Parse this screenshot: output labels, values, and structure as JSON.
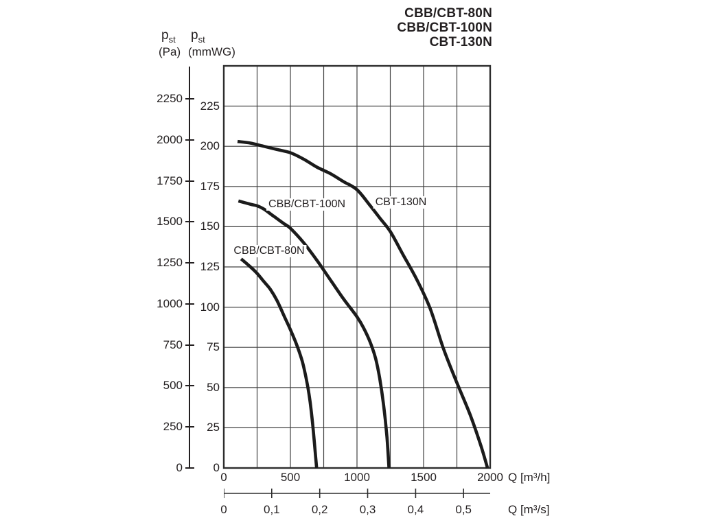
{
  "colors": {
    "ink": "#231f20",
    "grid": "#404040",
    "curve": "#1b1b1b",
    "background": "#ffffff"
  },
  "chart_data": {
    "type": "line",
    "title": "",
    "legend": [
      "CBB/CBT-80N",
      "CBB/CBT-100N",
      "CBT-130N"
    ],
    "grid": true,
    "x_axis": {
      "unit_label": "Q [m³/h]",
      "min": 0,
      "max": 2000,
      "gridline_step": 250,
      "tick_values": [
        0,
        500,
        1000,
        1500,
        2000
      ],
      "tick_labels": [
        "0",
        "500",
        "1000",
        "1500",
        "2000"
      ]
    },
    "x_axis_secondary": {
      "unit_label": "Q [m³/s]",
      "m3h_per_m3s": 3600,
      "tick_values": [
        0,
        0.1,
        0.2,
        0.3,
        0.4,
        0.5
      ],
      "tick_labels": [
        "0",
        "0,1",
        "0,2",
        "0,3",
        "0,4",
        "0,5"
      ]
    },
    "y_axis_mmwg": {
      "symbol": "p",
      "symbol_sub": "st",
      "unit_label": "(mmWG)",
      "min": 0,
      "max": 250,
      "gridline_step": 25,
      "tick_values": [
        0,
        25,
        50,
        75,
        100,
        125,
        150,
        175,
        200,
        225
      ],
      "tick_labels": [
        "0",
        "25",
        "50",
        "75",
        "100",
        "125",
        "150",
        "175",
        "200",
        "225"
      ]
    },
    "y_axis_pa": {
      "symbol": "p",
      "symbol_sub": "st",
      "unit_label": "(Pa)",
      "pa_per_mmwg": 9.80665,
      "tick_values": [
        0,
        250,
        500,
        750,
        1000,
        1250,
        1500,
        1750,
        2000,
        2250
      ],
      "tick_labels": [
        "0",
        "250",
        "500",
        "750",
        "1000",
        "1250",
        "1500",
        "1750",
        "2000",
        "2250"
      ]
    },
    "series": [
      {
        "name": "CBB/CBT-80N",
        "points_unit": "[Q m3/h, pst mmWG]",
        "points": [
          [
            130,
            130
          ],
          [
            200,
            125
          ],
          [
            250,
            121
          ],
          [
            300,
            116
          ],
          [
            350,
            111
          ],
          [
            400,
            104
          ],
          [
            450,
            95
          ],
          [
            500,
            86
          ],
          [
            550,
            76
          ],
          [
            590,
            66
          ],
          [
            620,
            55
          ],
          [
            645,
            43
          ],
          [
            665,
            29
          ],
          [
            682,
            14
          ],
          [
            697,
            0
          ]
        ]
      },
      {
        "name": "CBB/CBT-100N",
        "points_unit": "[Q m3/h, pst mmWG]",
        "points": [
          [
            110,
            166
          ],
          [
            200,
            164
          ],
          [
            250,
            163
          ],
          [
            300,
            161
          ],
          [
            350,
            158
          ],
          [
            400,
            155
          ],
          [
            450,
            152
          ],
          [
            500,
            149
          ],
          [
            600,
            140
          ],
          [
            700,
            129
          ],
          [
            800,
            117
          ],
          [
            900,
            105
          ],
          [
            1000,
            94
          ],
          [
            1050,
            87
          ],
          [
            1100,
            78
          ],
          [
            1140,
            68
          ],
          [
            1170,
            56
          ],
          [
            1200,
            39
          ],
          [
            1225,
            19
          ],
          [
            1240,
            0
          ]
        ]
      },
      {
        "name": "CBT-130N",
        "points_unit": "[Q m3/h, pst mmWG]",
        "points": [
          [
            103,
            203
          ],
          [
            200,
            202
          ],
          [
            300,
            200
          ],
          [
            400,
            198
          ],
          [
            500,
            196
          ],
          [
            600,
            192
          ],
          [
            700,
            187
          ],
          [
            800,
            183
          ],
          [
            900,
            178
          ],
          [
            1000,
            173
          ],
          [
            1100,
            163
          ],
          [
            1175,
            155
          ],
          [
            1250,
            147
          ],
          [
            1350,
            132
          ],
          [
            1450,
            117
          ],
          [
            1550,
            99
          ],
          [
            1650,
            74
          ],
          [
            1750,
            53
          ],
          [
            1850,
            33
          ],
          [
            1930,
            14
          ],
          [
            1980,
            0
          ]
        ]
      }
    ],
    "annotations": [
      {
        "text": "CBB/CBT-80N",
        "q": 340,
        "p": 135
      },
      {
        "text": "CBB/CBT-100N",
        "q": 624,
        "p": 164
      },
      {
        "text": "CBT-130N",
        "q": 1330,
        "p": 165
      }
    ]
  }
}
